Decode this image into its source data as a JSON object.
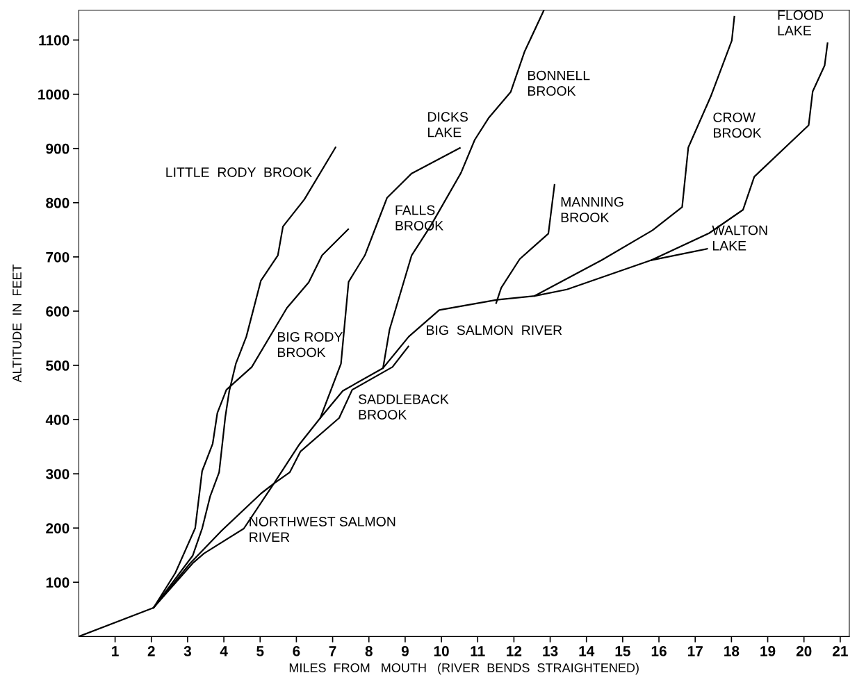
{
  "chart_data": {
    "type": "line",
    "xlabel": "MILES  FROM   MOUTH   (RIVER  BENDS  STRAIGHTENED)",
    "ylabel": "ALTITUDE  IN  FEET",
    "xlim": [
      0,
      21.25
    ],
    "ylim": [
      0,
      1155
    ],
    "xticks": [
      1,
      2,
      3,
      4,
      5,
      6,
      7,
      8,
      9,
      10,
      11,
      12,
      13,
      14,
      15,
      16,
      17,
      18,
      19,
      20,
      21
    ],
    "yticks": [
      100,
      200,
      300,
      400,
      500,
      600,
      700,
      800,
      900,
      1000,
      1100
    ],
    "series": [
      {
        "color": "#000000",
        "x": [
          2.06,
          3.14,
          3.4,
          3.62,
          3.87,
          4.04,
          4.15,
          4.33,
          4.62,
          5.02,
          5.49,
          5.63,
          6.22,
          7.08
        ],
        "values": [
          53,
          149,
          199,
          258,
          303,
          405,
          453,
          503,
          553,
          656,
          703,
          756,
          806,
          902
        ]
      },
      {
        "color": "#000000",
        "x": [
          2.06,
          2.66,
          3.21,
          3.4,
          3.69,
          3.82,
          4.07,
          4.77,
          5.74,
          6.34,
          6.71,
          7.43
        ],
        "values": [
          53,
          117,
          200,
          305,
          355,
          412,
          455,
          497,
          606,
          653,
          703,
          751
        ]
      },
      {
        "color": "#000000",
        "x": [
          0,
          2.06,
          3.07,
          3.92,
          5.03,
          5.38,
          5.82,
          6.11,
          7.18,
          7.54,
          8.65,
          9.09
        ],
        "values": [
          0,
          53,
          135,
          194,
          264,
          282,
          303,
          341,
          403,
          455,
          497,
          535
        ]
      },
      {
        "color": "#000000",
        "x": [
          2.06,
          3.14,
          3.45,
          4.55,
          5.38,
          6.09,
          6.66,
          7.28,
          8.39,
          9.1,
          9.94,
          11.53,
          12.57,
          13.46,
          15.79,
          17.33
        ],
        "values": [
          53,
          135,
          153,
          199,
          282,
          355,
          403,
          453,
          495,
          553,
          602,
          621,
          628,
          640,
          694,
          715
        ]
      },
      {
        "color": "#000000",
        "x": [
          6.66,
          7.23,
          7.44,
          7.89,
          8.27,
          8.5,
          9.18,
          10.51
        ],
        "values": [
          403,
          503,
          654,
          703,
          769,
          809,
          854,
          901
        ]
      },
      {
        "color": "#000000",
        "x": [
          8.39,
          8.57,
          9.18,
          9.71,
          10.54,
          10.92,
          11.3,
          11.91,
          12.29,
          12.82
        ],
        "values": [
          495,
          566,
          703,
          758,
          855,
          916,
          956,
          1004,
          1078,
          1154
        ]
      },
      {
        "color": "#000000",
        "x": [
          11.51,
          11.65,
          12.16,
          12.95,
          13.12
        ],
        "values": [
          615,
          643,
          696,
          743,
          833
        ]
      },
      {
        "color": "#000000",
        "x": [
          12.57,
          14.42,
          15.82,
          16.64,
          16.81,
          17.43,
          18.01,
          18.08
        ],
        "values": [
          628,
          694,
          749,
          792,
          902,
          996,
          1099,
          1143
        ]
      },
      {
        "color": "#000000",
        "x": [
          15.79,
          17.39,
          18.32,
          18.63,
          20.13,
          20.24,
          20.57,
          20.65
        ],
        "values": [
          694,
          744,
          787,
          848,
          943,
          1005,
          1053,
          1094
        ]
      }
    ],
    "annotations": [
      {
        "text": "LITTLE  RODY  BROOK",
        "x": 6.65,
        "y": 854
      },
      {
        "text": "BIG RODY\nBROOK",
        "x": 4.77,
        "y": 497
      },
      {
        "text": "NORTHWEST SALMON\nRIVER",
        "x": 4.55,
        "y": 199
      },
      {
        "text": "SADDLEBACK\nBROOK",
        "x": 7.54,
        "y": 455
      },
      {
        "text": "FALLS\nBROOK",
        "x": 8.5,
        "y": 809
      },
      {
        "text": "DICKS\nLAKE",
        "x": 10.51,
        "y": 901
      },
      {
        "text": "BONNELL\nBROOK",
        "x": 11.91,
        "y": 1004
      },
      {
        "text": "BIG  SALMON  RIVER",
        "x": 9.94,
        "y": 602
      },
      {
        "text": "MANNING\nBROOK",
        "x": 13.12,
        "y": 833
      },
      {
        "text": "CROW\nBROOK",
        "x": 17.43,
        "y": 996
      },
      {
        "text": "WALTON\nLAKE",
        "x": 17.33,
        "y": 715
      },
      {
        "text": "FLOOD\nLAKE",
        "x": 20.65,
        "y": 1094
      }
    ]
  }
}
